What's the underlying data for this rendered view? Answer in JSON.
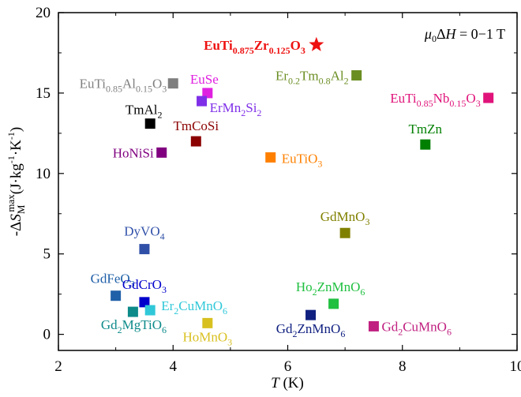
{
  "chart_data": {
    "type": "scatter",
    "xlabel": "T (K)",
    "ylabel": "-ΔS_M^max (J·kg⁻¹·K⁻¹)",
    "xlim": [
      2,
      10
    ],
    "ylim": [
      -1,
      20
    ],
    "xticks": [
      2,
      4,
      6,
      8,
      10
    ],
    "yticks": [
      0,
      5,
      10,
      15,
      20
    ],
    "grid": false,
    "field_annotation": "μ0ΔH = 0−1 T",
    "points": [
      {
        "label": "EuTi0.875Zr0.125O3",
        "x": 6.5,
        "y": 18.0,
        "color": "#ee1111",
        "marker": "star",
        "bold": true
      },
      {
        "label": "EuTi0.85Al0.15O3",
        "x": 4.0,
        "y": 15.6,
        "color": "#7f7f7f",
        "marker": "square"
      },
      {
        "label": "EuSe",
        "x": 4.6,
        "y": 15.0,
        "color": "#e020e0",
        "marker": "square"
      },
      {
        "label": "ErMn2Si2",
        "x": 4.5,
        "y": 14.5,
        "color": "#7f2fe8",
        "marker": "square"
      },
      {
        "label": "TmAl2",
        "x": 3.6,
        "y": 13.1,
        "color": "#000000",
        "marker": "square"
      },
      {
        "label": "TmCoSi",
        "x": 4.4,
        "y": 12.0,
        "color": "#8b0000",
        "marker": "square"
      },
      {
        "label": "HoNiSi",
        "x": 3.8,
        "y": 11.3,
        "color": "#800080",
        "marker": "square"
      },
      {
        "label": "EuTiO3",
        "x": 5.7,
        "y": 11.0,
        "color": "#ff8000",
        "marker": "square"
      },
      {
        "label": "Er0.2Tm0.8Al2",
        "x": 7.2,
        "y": 16.1,
        "color": "#6b8e23",
        "marker": "square"
      },
      {
        "label": "EuTi0.85Nb0.15O3",
        "x": 9.5,
        "y": 14.7,
        "color": "#e0137a",
        "marker": "square"
      },
      {
        "label": "TmZn",
        "x": 8.4,
        "y": 11.8,
        "color": "#007f00",
        "marker": "square"
      },
      {
        "label": "GdMnO3",
        "x": 7.0,
        "y": 6.3,
        "color": "#808000",
        "marker": "square"
      },
      {
        "label": "DyVO4",
        "x": 3.5,
        "y": 5.3,
        "color": "#3050a8",
        "marker": "square"
      },
      {
        "label": "GdFeO3",
        "x": 3.0,
        "y": 2.4,
        "color": "#2060a8",
        "marker": "square"
      },
      {
        "label": "GdCrO3",
        "x": 3.5,
        "y": 2.0,
        "color": "#0000cc",
        "marker": "square"
      },
      {
        "label": "Er2CuMnO6",
        "x": 3.6,
        "y": 1.5,
        "color": "#30c8d8",
        "marker": "square"
      },
      {
        "label": "Gd2MgTiO6",
        "x": 3.3,
        "y": 1.4,
        "color": "#0d8a8a",
        "marker": "square"
      },
      {
        "label": "HoMnO3",
        "x": 4.6,
        "y": 0.7,
        "color": "#d8c020",
        "marker": "square"
      },
      {
        "label": "Ho2ZnMnO6",
        "x": 6.8,
        "y": 1.9,
        "color": "#20c040",
        "marker": "square"
      },
      {
        "label": "Gd2ZnMnO6",
        "x": 6.4,
        "y": 1.2,
        "color": "#102080",
        "marker": "square"
      },
      {
        "label": "Gd2CuMnO6",
        "x": 7.5,
        "y": 0.5,
        "color": "#c02080",
        "marker": "square"
      }
    ]
  }
}
